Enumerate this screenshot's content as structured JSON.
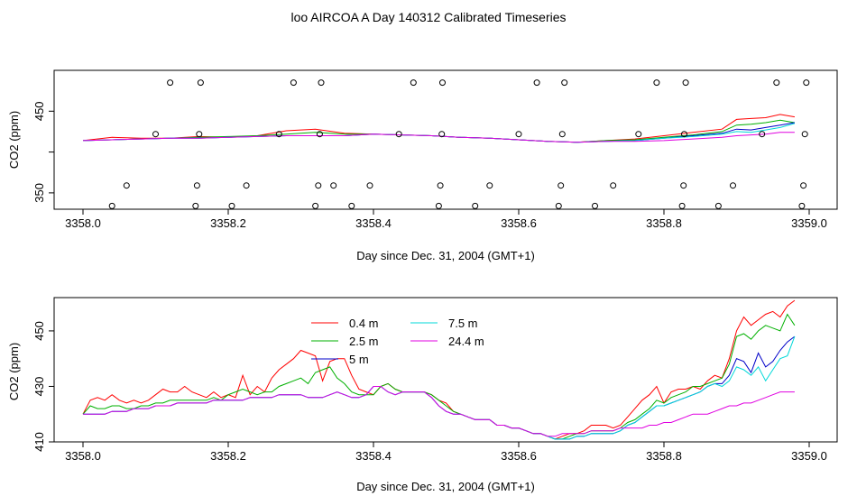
{
  "figure": {
    "title": "loo AIRCOA A  Day 140312  Calibrated Timeseries"
  },
  "chart_data": [
    {
      "type": "scatter",
      "title": "loo AIRCOA A  Day 140312  Calibrated Timeseries",
      "xlabel": "Day since Dec. 31, 2004 (GMT+1)",
      "ylabel": "CO2 (ppm)",
      "xlim": [
        3358.0,
        3359.0
      ],
      "ylim": [
        330,
        500
      ],
      "x_ticks": [
        3358.0,
        3358.2,
        3358.4,
        3358.6,
        3358.8,
        3359.0
      ],
      "x_tick_labels": [
        "3358.0",
        "3358.2",
        "3358.4",
        "3358.6",
        "3358.8",
        "3359.0"
      ],
      "y_ticks": [
        350,
        400,
        450
      ],
      "y_tick_labels": [
        "350",
        "",
        "450"
      ],
      "grid": false,
      "point_series": {
        "x": [
          3358.04,
          3358.06,
          3358.1,
          3358.12,
          3358.155,
          3358.157,
          3358.16,
          3358.162,
          3358.205,
          3358.225,
          3358.27,
          3358.29,
          3358.32,
          3358.324,
          3358.326,
          3358.328,
          3358.345,
          3358.37,
          3358.395,
          3358.435,
          3358.455,
          3358.49,
          3358.492,
          3358.494,
          3358.495,
          3358.54,
          3358.56,
          3358.6,
          3358.625,
          3358.655,
          3358.658,
          3358.66,
          3358.663,
          3358.705,
          3358.73,
          3358.765,
          3358.79,
          3358.825,
          3358.827,
          3358.828,
          3358.83,
          3358.875,
          3358.895,
          3358.935,
          3358.955,
          3358.99,
          3358.992,
          3358.994,
          3358.996
        ],
        "y": [
          334,
          359,
          422,
          485,
          334,
          359,
          422,
          485,
          334,
          359,
          422,
          485,
          334,
          359,
          422,
          485,
          359,
          334,
          359,
          422,
          485,
          334,
          359,
          422,
          485,
          334,
          359,
          422,
          485,
          334,
          359,
          422,
          485,
          334,
          359,
          422,
          485,
          334,
          359,
          422,
          485,
          334,
          359,
          422,
          485,
          334,
          359,
          422,
          485
        ]
      },
      "series": [
        {
          "color": "#ff0000",
          "x": [
            3358.0,
            3358.04,
            3358.08,
            3358.12,
            3358.16,
            3358.2,
            3358.24,
            3358.28,
            3358.32,
            3358.36,
            3358.4,
            3358.44,
            3358.48,
            3358.52,
            3358.56,
            3358.6,
            3358.64,
            3358.68,
            3358.72,
            3358.76,
            3358.8,
            3358.84,
            3358.88,
            3358.9,
            3358.92,
            3358.94,
            3358.96,
            3358.98
          ],
          "y": [
            414,
            418,
            417,
            417,
            419,
            418,
            420,
            426,
            428,
            423,
            422,
            421,
            420,
            418,
            417,
            415,
            413,
            412,
            414,
            416,
            420,
            424,
            428,
            440,
            441,
            442,
            446,
            443
          ]
        },
        {
          "color": "#00b000",
          "x": [
            3358.0,
            3358.04,
            3358.08,
            3358.12,
            3358.16,
            3358.2,
            3358.24,
            3358.28,
            3358.32,
            3358.36,
            3358.4,
            3358.44,
            3358.48,
            3358.52,
            3358.56,
            3358.6,
            3358.64,
            3358.68,
            3358.72,
            3358.76,
            3358.8,
            3358.84,
            3358.88,
            3358.9,
            3358.92,
            3358.94,
            3358.96,
            3358.98
          ],
          "y": [
            414,
            415,
            416,
            417,
            418,
            419,
            420,
            422,
            424,
            422,
            422,
            421,
            420,
            418,
            417,
            415,
            413,
            412,
            414,
            415,
            418,
            421,
            425,
            433,
            434,
            436,
            439,
            436
          ]
        },
        {
          "color": "#0000c8",
          "x": [
            3358.0,
            3358.04,
            3358.08,
            3358.12,
            3358.16,
            3358.2,
            3358.24,
            3358.28,
            3358.32,
            3358.36,
            3358.4,
            3358.44,
            3358.48,
            3358.52,
            3358.56,
            3358.6,
            3358.64,
            3358.68,
            3358.72,
            3358.76,
            3358.8,
            3358.84,
            3358.88,
            3358.9,
            3358.92,
            3358.94,
            3358.96,
            3358.98
          ],
          "y": [
            414,
            415,
            416,
            417,
            417,
            418,
            419,
            420,
            420,
            420,
            422,
            421,
            420,
            418,
            417,
            415,
            413,
            412,
            413,
            414,
            417,
            420,
            423,
            428,
            427,
            430,
            433,
            436
          ]
        },
        {
          "color": "#00d8d8",
          "x": [
            3358.0,
            3358.04,
            3358.08,
            3358.12,
            3358.16,
            3358.2,
            3358.24,
            3358.28,
            3358.32,
            3358.36,
            3358.4,
            3358.44,
            3358.48,
            3358.52,
            3358.56,
            3358.6,
            3358.64,
            3358.68,
            3358.72,
            3358.76,
            3358.8,
            3358.84,
            3358.88,
            3358.9,
            3358.92,
            3358.94,
            3358.96,
            3358.98
          ],
          "y": [
            414,
            415,
            416,
            417,
            417,
            418,
            419,
            420,
            420,
            420,
            422,
            421,
            420,
            418,
            417,
            415,
            413,
            412,
            413,
            414,
            417,
            419,
            422,
            425,
            424,
            427,
            430,
            435
          ]
        },
        {
          "color": "#e000e0",
          "x": [
            3358.0,
            3358.04,
            3358.08,
            3358.12,
            3358.16,
            3358.2,
            3358.24,
            3358.28,
            3358.32,
            3358.36,
            3358.4,
            3358.44,
            3358.48,
            3358.52,
            3358.56,
            3358.6,
            3358.64,
            3358.68,
            3358.72,
            3358.76,
            3358.8,
            3358.84,
            3358.88,
            3358.9,
            3358.92,
            3358.94,
            3358.96,
            3358.98
          ],
          "y": [
            414,
            415,
            416,
            417,
            417,
            418,
            419,
            420,
            420,
            420,
            422,
            421,
            420,
            418,
            417,
            415,
            413,
            412,
            413,
            413,
            414,
            416,
            418,
            420,
            421,
            422,
            424,
            424
          ]
        }
      ]
    },
    {
      "type": "line",
      "xlabel": "Day since Dec. 31, 2004 (GMT+1)",
      "ylabel": "CO2 (ppm)",
      "xlim": [
        3358.0,
        3359.0
      ],
      "ylim": [
        410,
        462
      ],
      "x_ticks": [
        3358.0,
        3358.2,
        3358.4,
        3358.6,
        3358.8,
        3359.0
      ],
      "x_tick_labels": [
        "3358.0",
        "3358.2",
        "3358.4",
        "3358.6",
        "3358.8",
        "3359.0"
      ],
      "y_ticks": [
        410,
        430,
        450
      ],
      "y_tick_labels": [
        "410",
        "430",
        "450"
      ],
      "grid": false,
      "legend_position": "top-left",
      "x": [
        3358.0,
        3358.01,
        3358.02,
        3358.03,
        3358.04,
        3358.05,
        3358.06,
        3358.07,
        3358.08,
        3358.09,
        3358.1,
        3358.11,
        3358.12,
        3358.13,
        3358.14,
        3358.15,
        3358.16,
        3358.17,
        3358.18,
        3358.19,
        3358.2,
        3358.21,
        3358.22,
        3358.23,
        3358.24,
        3358.25,
        3358.26,
        3358.27,
        3358.28,
        3358.29,
        3358.3,
        3358.31,
        3358.32,
        3358.33,
        3358.34,
        3358.35,
        3358.36,
        3358.37,
        3358.38,
        3358.39,
        3358.4,
        3358.41,
        3358.42,
        3358.43,
        3358.44,
        3358.45,
        3358.46,
        3358.47,
        3358.48,
        3358.49,
        3358.5,
        3358.51,
        3358.52,
        3358.53,
        3358.54,
        3358.55,
        3358.56,
        3358.57,
        3358.58,
        3358.59,
        3358.6,
        3358.61,
        3358.62,
        3358.63,
        3358.64,
        3358.65,
        3358.66,
        3358.67,
        3358.68,
        3358.69,
        3358.7,
        3358.71,
        3358.72,
        3358.73,
        3358.74,
        3358.75,
        3358.76,
        3358.77,
        3358.78,
        3358.79,
        3358.8,
        3358.81,
        3358.82,
        3358.83,
        3358.84,
        3358.85,
        3358.86,
        3358.87,
        3358.88,
        3358.89,
        3358.9,
        3358.91,
        3358.92,
        3358.93,
        3358.94,
        3358.95,
        3358.96,
        3358.97,
        3358.98
      ],
      "series": [
        {
          "name": "0.4 m",
          "color": "#ff0000",
          "values": [
            420,
            425,
            426,
            425,
            427,
            425,
            424,
            425,
            424,
            425,
            427,
            429,
            428,
            428,
            430,
            428,
            427,
            426,
            428,
            426,
            427,
            426,
            434,
            427,
            430,
            428,
            433,
            436,
            438,
            440,
            443,
            442,
            441,
            432,
            439,
            440,
            440,
            434,
            429,
            428,
            427,
            430,
            431,
            429,
            428,
            428,
            428,
            428,
            427,
            425,
            424,
            421,
            420,
            419,
            418,
            418,
            418,
            416,
            416,
            415,
            415,
            414,
            413,
            413,
            412,
            411,
            412,
            413,
            413,
            414,
            416,
            416,
            416,
            415,
            416,
            419,
            422,
            425,
            427,
            430,
            424,
            428,
            429,
            429,
            430,
            429,
            432,
            434,
            433,
            440,
            450,
            455,
            452,
            454,
            456,
            457,
            455,
            459,
            461
          ]
        },
        {
          "name": "2.5 m",
          "color": "#00b000",
          "values": [
            420,
            423,
            422,
            422,
            423,
            423,
            422,
            422,
            423,
            423,
            424,
            424,
            425,
            425,
            425,
            425,
            425,
            425,
            426,
            425,
            427,
            428,
            429,
            428,
            427,
            428,
            428,
            430,
            431,
            432,
            433,
            431,
            435,
            436,
            437,
            433,
            431,
            428,
            427,
            427,
            427,
            430,
            431,
            429,
            428,
            428,
            428,
            428,
            427,
            425,
            423,
            421,
            420,
            419,
            418,
            418,
            418,
            416,
            416,
            415,
            415,
            414,
            413,
            413,
            412,
            411,
            411,
            412,
            413,
            413,
            414,
            414,
            414,
            414,
            415,
            417,
            418,
            420,
            422,
            425,
            424,
            426,
            427,
            428,
            430,
            430,
            431,
            432,
            433,
            438,
            448,
            449,
            447,
            450,
            452,
            451,
            450,
            456,
            452
          ]
        },
        {
          "name": "5 m",
          "color": "#0000c8",
          "values": [
            420,
            420,
            420,
            420,
            421,
            421,
            421,
            422,
            422,
            422,
            423,
            423,
            423,
            424,
            424,
            424,
            424,
            424,
            425,
            425,
            425,
            425,
            425,
            426,
            426,
            426,
            426,
            427,
            427,
            427,
            427,
            426,
            426,
            426,
            427,
            428,
            427,
            426,
            426,
            427,
            430,
            430,
            428,
            427,
            428,
            428,
            428,
            428,
            426,
            423,
            421,
            420,
            420,
            419,
            418,
            418,
            418,
            416,
            416,
            415,
            415,
            414,
            413,
            413,
            412,
            411,
            411,
            411,
            412,
            412,
            413,
            413,
            413,
            413,
            414,
            416,
            417,
            419,
            421,
            423,
            423,
            424,
            425,
            426,
            427,
            428,
            430,
            431,
            431,
            434,
            440,
            439,
            435,
            442,
            437,
            439,
            443,
            446,
            448
          ]
        },
        {
          "name": "7.5 m",
          "color": "#00d8d8",
          "values": [
            420,
            420,
            420,
            420,
            421,
            421,
            421,
            422,
            422,
            422,
            423,
            423,
            423,
            424,
            424,
            424,
            424,
            424,
            425,
            425,
            425,
            425,
            425,
            426,
            426,
            426,
            426,
            427,
            427,
            427,
            427,
            426,
            426,
            426,
            427,
            428,
            427,
            426,
            426,
            427,
            430,
            430,
            428,
            427,
            428,
            428,
            428,
            428,
            426,
            423,
            421,
            420,
            420,
            419,
            418,
            418,
            418,
            416,
            416,
            415,
            415,
            414,
            413,
            413,
            412,
            411,
            411,
            411,
            412,
            412,
            413,
            413,
            413,
            413,
            414,
            416,
            417,
            419,
            421,
            423,
            423,
            424,
            425,
            426,
            427,
            428,
            430,
            431,
            430,
            432,
            437,
            436,
            434,
            437,
            432,
            436,
            440,
            441,
            448
          ]
        },
        {
          "name": "24.4 m",
          "color": "#e000e0",
          "values": [
            420,
            420,
            420,
            420,
            421,
            421,
            421,
            422,
            422,
            422,
            423,
            423,
            423,
            424,
            424,
            424,
            424,
            424,
            425,
            425,
            425,
            425,
            425,
            426,
            426,
            426,
            426,
            427,
            427,
            427,
            427,
            426,
            426,
            426,
            427,
            428,
            427,
            426,
            426,
            427,
            430,
            430,
            428,
            427,
            428,
            428,
            428,
            428,
            426,
            423,
            421,
            420,
            420,
            419,
            418,
            418,
            418,
            416,
            416,
            415,
            415,
            414,
            413,
            413,
            412,
            412,
            413,
            413,
            413,
            413,
            414,
            414,
            414,
            414,
            415,
            415,
            415,
            415,
            416,
            416,
            417,
            417,
            418,
            419,
            420,
            420,
            420,
            421,
            422,
            423,
            423,
            424,
            424,
            425,
            426,
            427,
            428,
            428,
            428
          ]
        }
      ]
    }
  ]
}
